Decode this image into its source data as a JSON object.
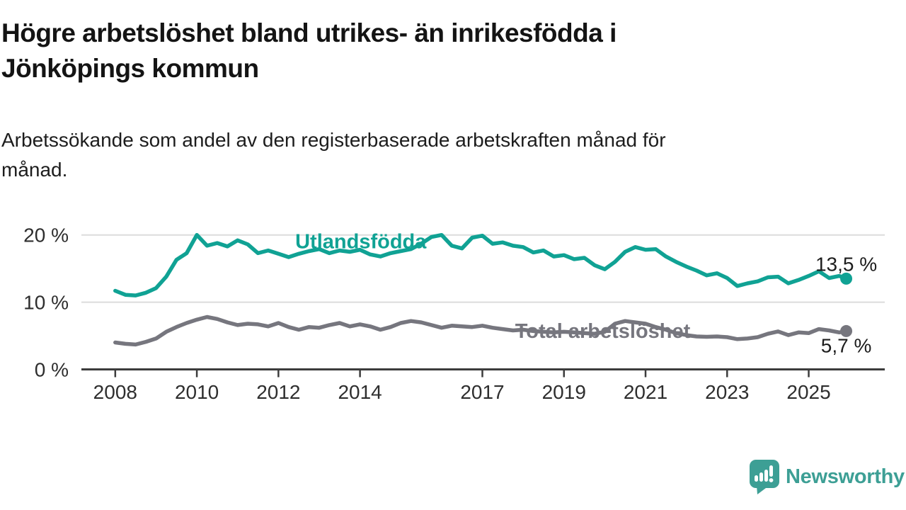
{
  "header": {
    "title": "Högre arbetslöshet bland utrikes- än inrikesfödda i\nJönköpings kommun",
    "subtitle": "Arbetssökande som andel av den registerbaserade arbetskraften månad för\nmånad."
  },
  "footer": {
    "brand": "Newsworthy",
    "logo_icon": "bar-chart-speech-bubble"
  },
  "colors": {
    "series_teal": "#10a294",
    "series_gray": "#76767e",
    "grid": "#dcdcdc",
    "axis": "#3c3c3c",
    "tick_text": "#2e2e2e",
    "value_text": "#1d1d1d",
    "logo_teal": "#3d9f95"
  },
  "chart_data": {
    "type": "line",
    "title": "Högre arbetslöshet bland utrikes- än inrikesfödda i Jönköpings kommun",
    "subtitle": "Arbetssökande som andel av den registerbaserade arbetskraften månad för månad.",
    "x_unit": "year (monthly rate, plotted quarterly)",
    "y_unit": "percent of registered labour force",
    "xlim": [
      2007.17,
      2026.83
    ],
    "ylim": [
      0,
      21.5
    ],
    "grid": "horizontal gridlines at 10 and 20 only",
    "legend_position": "inline labels on lines",
    "y_ticks": [
      {
        "value": 0,
        "label": "0 %"
      },
      {
        "value": 10,
        "label": "10 %"
      },
      {
        "value": 20,
        "label": "20 %"
      }
    ],
    "x_ticks": [
      {
        "value": 2008,
        "label": "2008"
      },
      {
        "value": 2010,
        "label": "2010"
      },
      {
        "value": 2012,
        "label": "2012"
      },
      {
        "value": 2014,
        "label": "2014"
      },
      {
        "value": 2017,
        "label": "2017"
      },
      {
        "value": 2019,
        "label": "2019"
      },
      {
        "value": 2021,
        "label": "2021"
      },
      {
        "value": 2023,
        "label": "2023"
      },
      {
        "value": 2025,
        "label": "2025"
      }
    ],
    "series": [
      {
        "name": "Utlandsfödda",
        "color": "#10a294",
        "end_label": "13,5 %",
        "end_value": 13.5,
        "label_anchor": {
          "x": 2014.02,
          "y": 19.1
        },
        "x": [
          2008.0,
          2008.25,
          2008.5,
          2008.75,
          2009.0,
          2009.25,
          2009.5,
          2009.75,
          2010.0,
          2010.25,
          2010.5,
          2010.75,
          2011.0,
          2011.25,
          2011.5,
          2011.75,
          2012.0,
          2012.25,
          2012.5,
          2012.75,
          2013.0,
          2013.25,
          2013.5,
          2013.75,
          2014.0,
          2014.25,
          2014.5,
          2014.75,
          2015.0,
          2015.25,
          2015.5,
          2015.75,
          2016.0,
          2016.25,
          2016.5,
          2016.75,
          2017.0,
          2017.25,
          2017.5,
          2017.75,
          2018.0,
          2018.25,
          2018.5,
          2018.75,
          2019.0,
          2019.25,
          2019.5,
          2019.75,
          2020.0,
          2020.25,
          2020.5,
          2020.75,
          2021.0,
          2021.25,
          2021.5,
          2021.75,
          2022.0,
          2022.25,
          2022.5,
          2022.75,
          2023.0,
          2023.25,
          2023.5,
          2023.75,
          2024.0,
          2024.25,
          2024.5,
          2024.75,
          2025.0,
          2025.25,
          2025.5,
          2025.75,
          2025.92
        ],
        "y": [
          11.7,
          11.1,
          11.0,
          11.4,
          12.1,
          13.8,
          16.3,
          17.3,
          20.0,
          18.4,
          18.8,
          18.3,
          19.2,
          18.6,
          17.3,
          17.7,
          17.2,
          16.7,
          17.2,
          17.6,
          17.9,
          17.3,
          17.7,
          17.5,
          17.8,
          17.1,
          16.8,
          17.3,
          17.6,
          17.9,
          18.7,
          19.7,
          20.0,
          18.4,
          18.0,
          19.6,
          19.9,
          18.7,
          18.9,
          18.4,
          18.2,
          17.4,
          17.7,
          16.8,
          17.0,
          16.4,
          16.6,
          15.5,
          14.9,
          16.0,
          17.5,
          18.2,
          17.8,
          17.9,
          16.8,
          16.0,
          15.3,
          14.7,
          14.0,
          14.3,
          13.6,
          12.4,
          12.8,
          13.1,
          13.7,
          13.8,
          12.8,
          13.3,
          13.9,
          14.6,
          13.6,
          13.9,
          13.5
        ]
      },
      {
        "name": "Total arbetslöshet",
        "color": "#76767e",
        "end_label": "5,7 %",
        "end_value": 5.7,
        "label_anchor": {
          "x": 2019.95,
          "y": 5.75
        },
        "x": [
          2008.0,
          2008.25,
          2008.5,
          2008.75,
          2009.0,
          2009.25,
          2009.5,
          2009.75,
          2010.0,
          2010.25,
          2010.5,
          2010.75,
          2011.0,
          2011.25,
          2011.5,
          2011.75,
          2012.0,
          2012.25,
          2012.5,
          2012.75,
          2013.0,
          2013.25,
          2013.5,
          2013.75,
          2014.0,
          2014.25,
          2014.5,
          2014.75,
          2015.0,
          2015.25,
          2015.5,
          2015.75,
          2016.0,
          2016.25,
          2016.5,
          2016.75,
          2017.0,
          2017.25,
          2017.5,
          2017.75,
          2018.0,
          2018.25,
          2018.5,
          2018.75,
          2019.0,
          2019.25,
          2019.5,
          2019.75,
          2020.0,
          2020.25,
          2020.5,
          2020.75,
          2021.0,
          2021.25,
          2021.5,
          2021.75,
          2022.0,
          2022.25,
          2022.5,
          2022.75,
          2023.0,
          2023.25,
          2023.5,
          2023.75,
          2024.0,
          2024.25,
          2024.5,
          2024.75,
          2025.0,
          2025.25,
          2025.5,
          2025.75,
          2025.92
        ],
        "y": [
          4.0,
          3.8,
          3.7,
          4.1,
          4.6,
          5.6,
          6.3,
          6.9,
          7.4,
          7.8,
          7.5,
          7.0,
          6.6,
          6.8,
          6.7,
          6.4,
          6.9,
          6.3,
          5.9,
          6.3,
          6.2,
          6.6,
          6.9,
          6.4,
          6.7,
          6.4,
          5.9,
          6.3,
          6.9,
          7.2,
          7.0,
          6.6,
          6.2,
          6.5,
          6.4,
          6.3,
          6.5,
          6.2,
          6.0,
          5.8,
          5.9,
          5.7,
          5.6,
          5.5,
          5.6,
          5.5,
          5.4,
          5.3,
          5.6,
          6.8,
          7.2,
          7.0,
          6.8,
          6.3,
          5.9,
          5.4,
          5.1,
          4.9,
          4.85,
          4.9,
          4.8,
          4.5,
          4.6,
          4.8,
          5.3,
          5.65,
          5.1,
          5.5,
          5.4,
          6.0,
          5.8,
          5.5,
          5.7
        ]
      }
    ]
  }
}
